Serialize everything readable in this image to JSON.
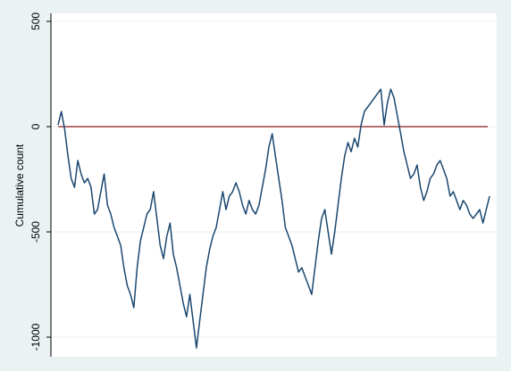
{
  "chart_data": {
    "type": "line",
    "y_label": "Cumulative count",
    "values": [
      8,
      72,
      -13,
      -140,
      -246,
      -288,
      -161,
      -225,
      -267,
      -246,
      -288,
      -415,
      -394,
      -309,
      -225,
      -373,
      -415,
      -479,
      -521,
      -564,
      -670,
      -754,
      -797,
      -860,
      -670,
      -542,
      -479,
      -415,
      -394,
      -309,
      -436,
      -564,
      -627,
      -521,
      -458,
      -606,
      -670,
      -754,
      -839,
      -903,
      -797,
      -924,
      -1051,
      -924,
      -797,
      -670,
      -585,
      -521,
      -479,
      -394,
      -309,
      -394,
      -330,
      -309,
      -267,
      -309,
      -373,
      -415,
      -351,
      -394,
      -415,
      -373,
      -288,
      -203,
      -97,
      -34,
      -140,
      -246,
      -351,
      -479,
      -521,
      -564,
      -627,
      -691,
      -670,
      -712,
      -754,
      -797,
      -670,
      -542,
      -436,
      -394,
      -500,
      -606,
      -500,
      -373,
      -246,
      -140,
      -76,
      -119,
      -55,
      -97,
      8,
      72,
      93,
      114,
      136,
      157,
      178,
      8,
      114,
      178,
      136,
      51,
      -34,
      -119,
      -182,
      -246,
      -225,
      -182,
      -288,
      -351,
      -309,
      -246,
      -225,
      -182,
      -161,
      -203,
      -246,
      -330,
      -309,
      -351,
      -394,
      -351,
      -373,
      -415,
      -436,
      -415,
      -394,
      -458,
      -394,
      -330
    ],
    "color": "#1a476f",
    "ylim": [
      -1093,
      538
    ],
    "yticks": [
      -1000,
      -500,
      0,
      500
    ],
    "grid": true,
    "reference_line": {
      "value": 0,
      "color": "#8b1a1a"
    }
  }
}
